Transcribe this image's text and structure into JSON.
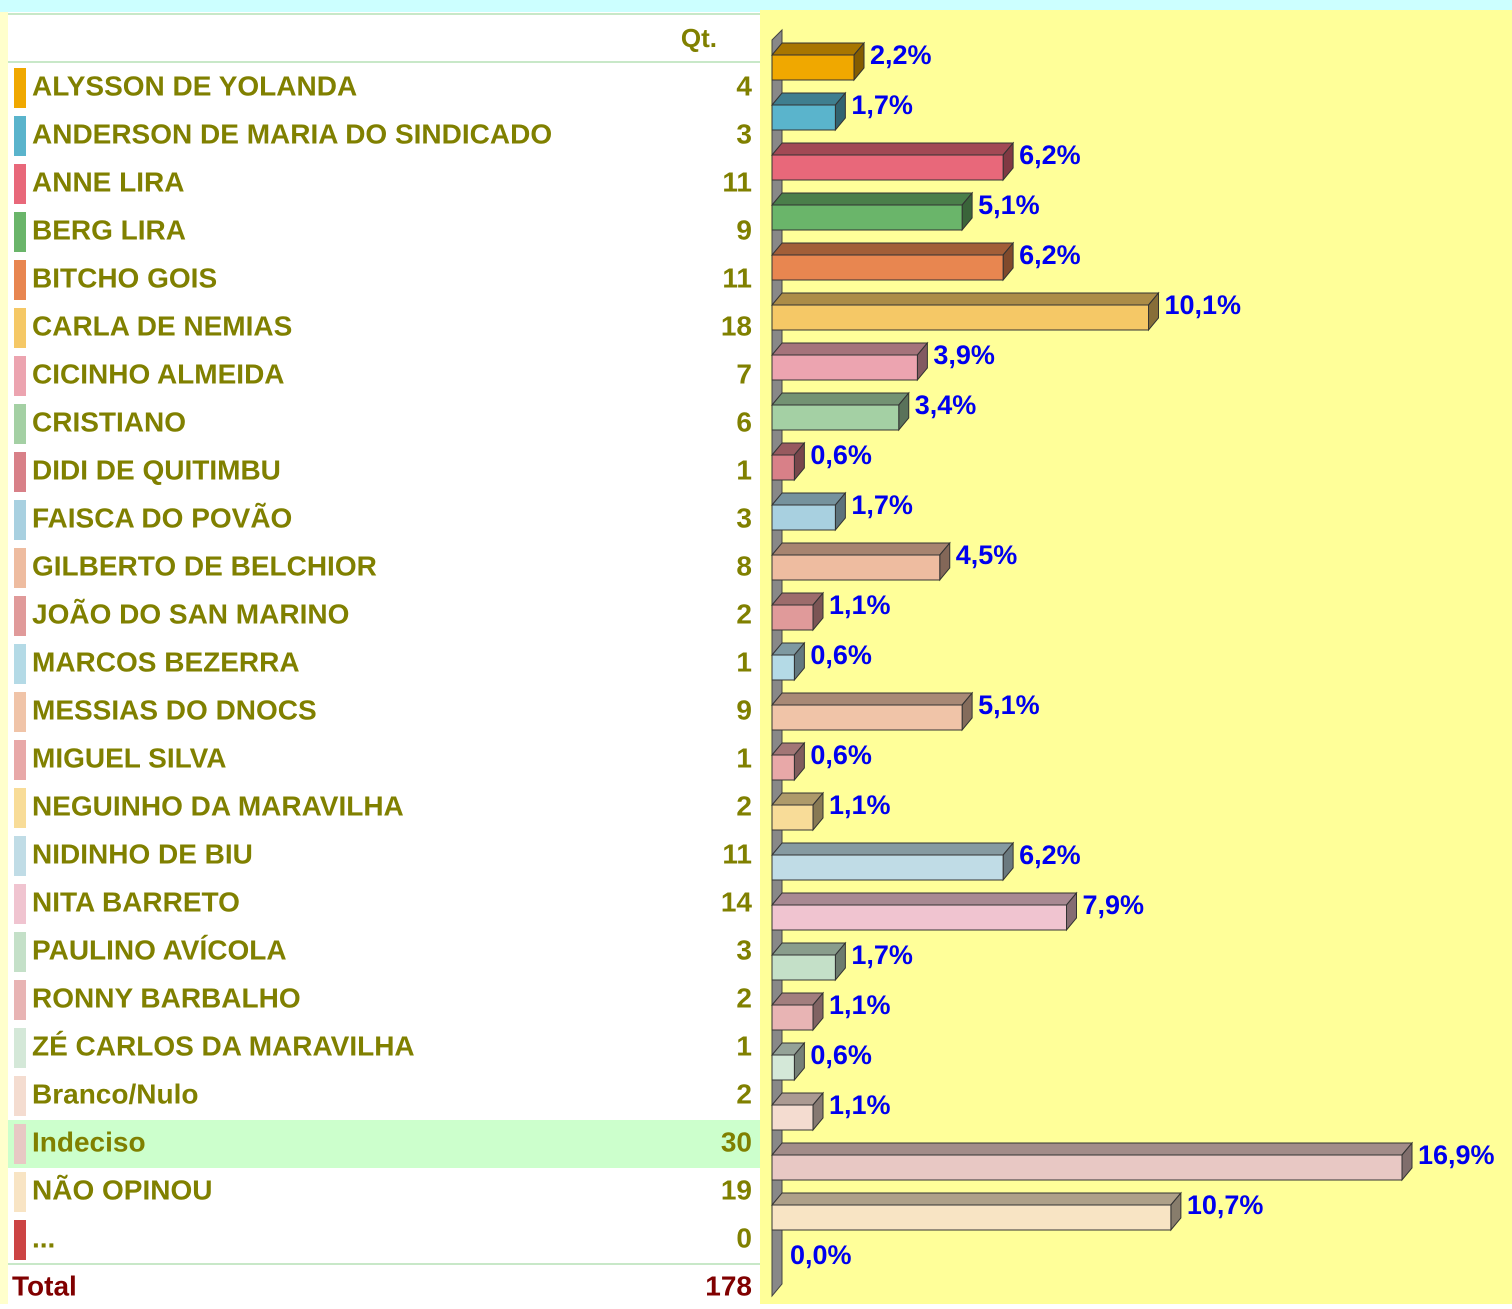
{
  "header": {
    "qty_label": "Qt."
  },
  "table": {
    "quantities": [
      4,
      3,
      11,
      9,
      11,
      18,
      7,
      6,
      1,
      3,
      8,
      2,
      1,
      9,
      1,
      2,
      11,
      14,
      3,
      2,
      1,
      2,
      30,
      19,
      0
    ],
    "total_label": "Total",
    "total": 178,
    "highlight_row": 22
  },
  "chart_data": {
    "type": "bar",
    "orientation": "horizontal",
    "categories": [
      "ALYSSON DE YOLANDA",
      "ANDERSON DE MARIA DO SINDICADO",
      "ANNE LIRA",
      "BERG LIRA",
      "BITCHO GOIS",
      "CARLA DE NEMIAS",
      "CICINHO ALMEIDA",
      "CRISTIANO",
      "DIDI  DE QUITIMBU",
      "FAISCA DO POVÃO",
      "GILBERTO DE BELCHIOR",
      "JOÃO DO SAN MARINO",
      "MARCOS BEZERRA",
      "MESSIAS DO DNOCS",
      "MIGUEL SILVA",
      "NEGUINHO DA MARAVILHA",
      "NIDINHO DE BIU",
      "NITA BARRETO",
      "PAULINO AVÍCOLA",
      "RONNY BARBALHO",
      "ZÉ CARLOS DA MARAVILHA",
      "Branco/Nulo",
      "Indeciso",
      "NÃO OPINOU",
      "..."
    ],
    "values": [
      2.2,
      1.7,
      6.2,
      5.1,
      6.2,
      10.1,
      3.9,
      3.4,
      0.6,
      1.7,
      4.5,
      1.1,
      0.6,
      5.1,
      0.6,
      1.1,
      6.2,
      7.9,
      1.7,
      1.1,
      0.6,
      1.1,
      16.9,
      10.7,
      0.0
    ],
    "value_labels": [
      "2,2%",
      "1,7%",
      "6,2%",
      "5,1%",
      "6,2%",
      "10,1%",
      "3,9%",
      "3,4%",
      "0,6%",
      "1,7%",
      "4,5%",
      "1,1%",
      "0,6%",
      "5,1%",
      "0,6%",
      "1,1%",
      "6,2%",
      "7,9%",
      "1,7%",
      "1,1%",
      "0,6%",
      "1,1%",
      "16,9%",
      "10,7%",
      "0,0%"
    ],
    "colors": [
      "#f0a800",
      "#5ab4cc",
      "#e8687a",
      "#6ab56a",
      "#e88650",
      "#f5c866",
      "#eca4b0",
      "#a4d0a4",
      "#d88088",
      "#a8d0e0",
      "#eebca0",
      "#e09a9a",
      "#b4dae6",
      "#f0c4a8",
      "#e8a8a8",
      "#f8dc98",
      "#c0dce6",
      "#f0c4d0",
      "#c4e0c8",
      "#e8b4b4",
      "#d4e8d8",
      "#f4dcd0",
      "#e8c8c4",
      "#f8e4c4",
      "#cc4444"
    ]
  }
}
